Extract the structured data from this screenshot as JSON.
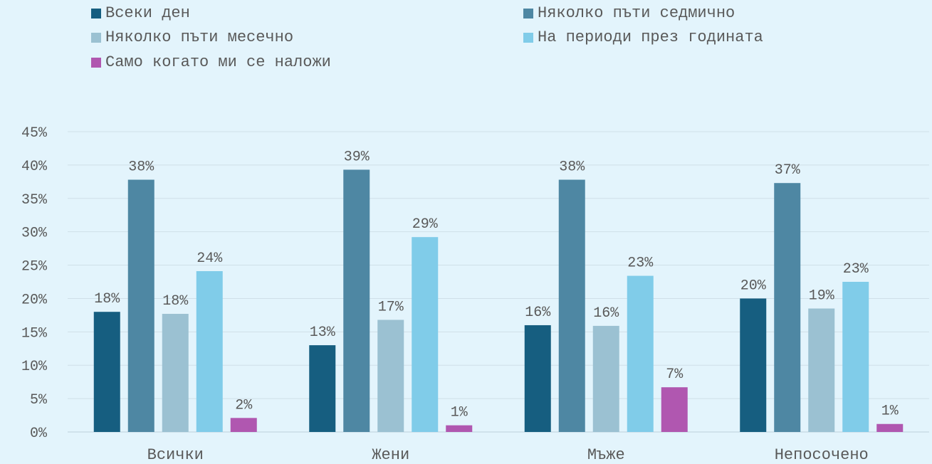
{
  "colors": {
    "background": "#e3f4fc",
    "gridline": "#cfdfe8",
    "text": "#595959",
    "series": [
      "#165e80",
      "#4e87a3",
      "#9bc1d2",
      "#80cce9",
      "#b057b0"
    ]
  },
  "chart_data": {
    "type": "bar",
    "categories": [
      "Всички",
      "Жени",
      "Мъже",
      "Непосочено"
    ],
    "series": [
      {
        "name": "Всеки ден",
        "values": [
          18,
          13,
          16,
          20
        ],
        "labels": [
          "18%",
          "13%",
          "16%",
          "20%"
        ]
      },
      {
        "name": "Няколко пъти седмично",
        "values": [
          37.8,
          39.3,
          37.8,
          37.3
        ],
        "labels": [
          "38%",
          "39%",
          "38%",
          "37%"
        ]
      },
      {
        "name": "Няколко пъти месечно",
        "values": [
          17.7,
          16.8,
          15.9,
          18.5
        ],
        "labels": [
          "18%",
          "17%",
          "16%",
          "19%"
        ]
      },
      {
        "name": "На периоди през годината",
        "values": [
          24.1,
          29.2,
          23.4,
          22.5
        ],
        "labels": [
          "24%",
          "29%",
          "23%",
          "23%"
        ]
      },
      {
        "name": "Само когато ми се наложи",
        "values": [
          2.1,
          1.0,
          6.7,
          1.2
        ],
        "labels": [
          "2%",
          "1%",
          "7%",
          "1%"
        ]
      }
    ],
    "ylim": [
      0,
      45
    ],
    "yticks": [
      0,
      5,
      10,
      15,
      20,
      25,
      30,
      35,
      40,
      45
    ],
    "ytick_labels": [
      "0%",
      "5%",
      "10%",
      "15%",
      "20%",
      "25%",
      "30%",
      "35%",
      "40%",
      "45%"
    ],
    "grid": true,
    "legend_position": "top"
  }
}
